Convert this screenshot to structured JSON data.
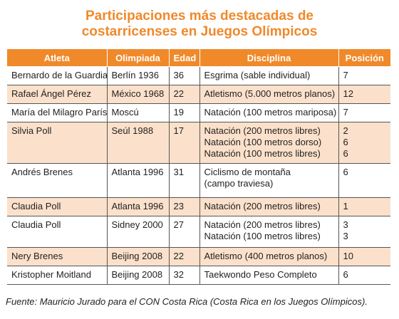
{
  "title": [
    "Participaciones más destacadas de",
    "costarricenses en Juegos Olímpicos"
  ],
  "table": {
    "header": [
      "Atleta",
      "Olimpiada",
      "Edad",
      "Disciplina",
      "Posición"
    ],
    "rows": [
      [
        "Bernardo de la Guardia",
        "Berlín 1936",
        "36",
        "Esgrima (sable individual)",
        "7"
      ],
      [
        "Rafael Ángel Pérez",
        "México 1968",
        "22",
        "Atletismo (5.000 metros planos)",
        "12"
      ],
      [
        "María del Milagro París",
        "Moscú",
        "19",
        "Natación (100 metros mariposa)",
        "7"
      ],
      [
        "Silvia Poll",
        "Seúl 1988",
        "17",
        [
          "Natación (200 metros libres)",
          "Natación (100 metros dorso)",
          "Natación (100 metros libres)"
        ],
        [
          "2",
          "6",
          "6"
        ]
      ],
      [
        "Andrés Brenes",
        "Atlanta 1996",
        "31",
        [
          "Ciclismo de montaña",
          "(campo traviesa)"
        ],
        "6"
      ],
      [
        "Claudia Poll",
        "Atlanta 1996",
        "23",
        "Natación (200 metros libres)",
        "1"
      ],
      [
        "Claudia Poll",
        "Sidney 2000",
        "27",
        [
          "Natación (200 metros libres)",
          "Natación (100 metros libres)"
        ],
        [
          "3",
          "3"
        ]
      ],
      [
        "Nery Brenes",
        "Beijing 2008",
        "22",
        "Atletismo (400 metros planos)",
        "10"
      ],
      [
        "Kristopher Moitland",
        "Beijing 2008",
        "32",
        "Taekwondo Peso Completo",
        "6"
      ]
    ]
  },
  "source": "Fuente: Mauricio Jurado para el CON Costa Rica (Costa Rica en los Juegos Olímpicos)."
}
